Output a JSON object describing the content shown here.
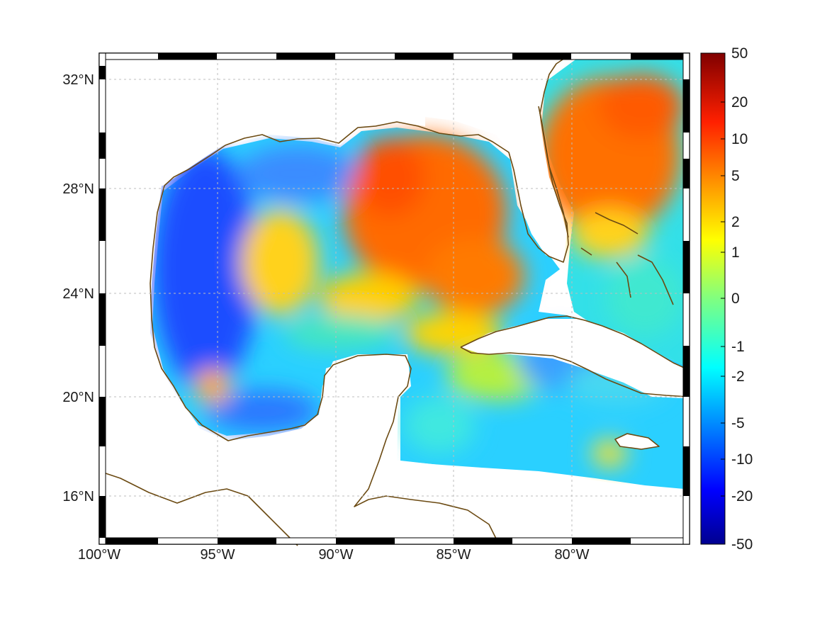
{
  "figure": {
    "projection": "lat-lon map with frame border",
    "lon_range": [
      -100,
      -75
    ],
    "lat_range": [
      14.2,
      33
    ],
    "lon_ticks": [
      {
        "value": -100,
        "label": "100°W"
      },
      {
        "value": -95,
        "label": "95°W"
      },
      {
        "value": -90,
        "label": "90°W"
      },
      {
        "value": -85,
        "label": "85°W"
      },
      {
        "value": -80,
        "label": "80°W"
      }
    ],
    "lat_ticks": [
      {
        "value": 32,
        "label": "32°N"
      },
      {
        "value": 28,
        "label": "28°N"
      },
      {
        "value": 24,
        "label": "24°N"
      },
      {
        "value": 20,
        "label": "20°N"
      },
      {
        "value": 16,
        "label": "16°N"
      }
    ],
    "grid": true,
    "coastline_color": "#6b4a12"
  },
  "colorbar": {
    "colormap": "jet",
    "scale": "symmetric nonlinear",
    "labels": [
      "50",
      "20",
      "10",
      "5",
      "2",
      "1",
      "0",
      "-1",
      "-2",
      "-5",
      "-10",
      "-20",
      "-50"
    ],
    "values": [
      50,
      20,
      10,
      5,
      2,
      1,
      0,
      -1,
      -2,
      -5,
      -10,
      -20,
      -50
    ]
  },
  "field_regions": [
    {
      "area": "Western Gulf of Mexico",
      "level": -10
    },
    {
      "area": "Eastern Gulf of Mexico / Loop Current",
      "level": 8
    },
    {
      "area": "Southern Gulf / Bay of Campeche",
      "level": -3
    },
    {
      "area": "Atlantic off Southeast US",
      "level": 8
    },
    {
      "area": "Caribbean Sea",
      "level": -2
    }
  ]
}
